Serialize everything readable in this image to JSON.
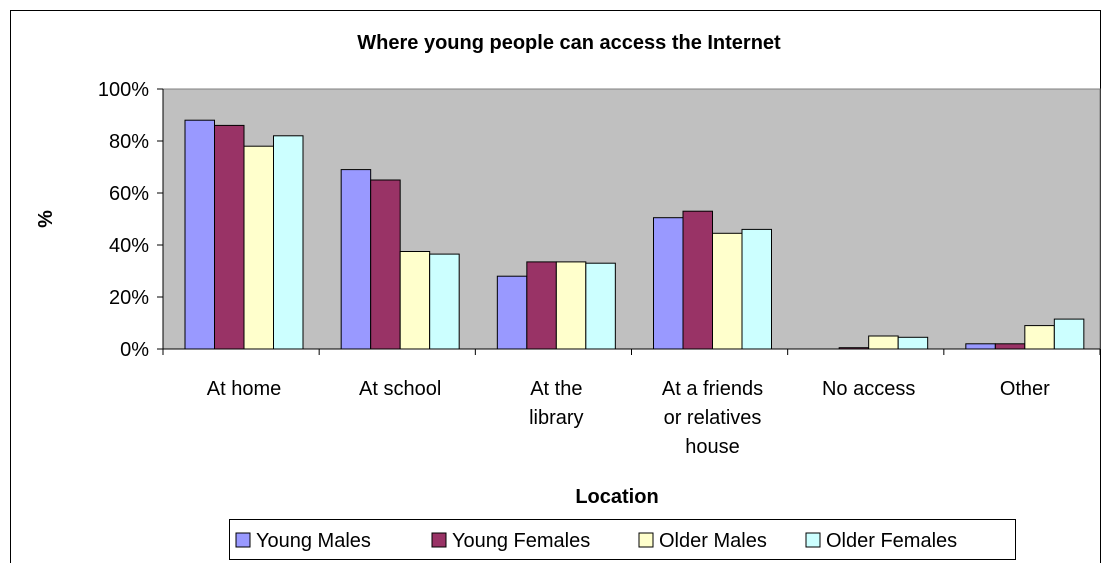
{
  "chart_data": {
    "type": "bar",
    "title": "Where young people can access the Internet",
    "xlabel": "Location",
    "ylabel": "%",
    "ylim": [
      0,
      100
    ],
    "yticks": [
      "0%",
      "20%",
      "40%",
      "60%",
      "80%",
      "100%"
    ],
    "ytick_values": [
      0,
      20,
      40,
      60,
      80,
      100
    ],
    "grid": false,
    "legend_position": "bottom",
    "categories": [
      [
        "At home"
      ],
      [
        "At school"
      ],
      [
        "At the",
        "library"
      ],
      [
        "At a friends",
        "or relatives",
        "house"
      ],
      [
        "No access"
      ],
      [
        "Other"
      ]
    ],
    "series": [
      {
        "name": "Young Males",
        "color": "#9999FF",
        "values": [
          88,
          69,
          28,
          50.5,
          0,
          2
        ]
      },
      {
        "name": "Young Females",
        "color": "#993366",
        "values": [
          86,
          65,
          33.5,
          53,
          0.5,
          2
        ]
      },
      {
        "name": "Older Males",
        "color": "#FFFFCC",
        "values": [
          78,
          37.5,
          33.5,
          44.5,
          5,
          9
        ]
      },
      {
        "name": "Older Females",
        "color": "#CCFFFF",
        "values": [
          82,
          36.5,
          33,
          46,
          4.5,
          11.5
        ]
      }
    ],
    "plot_background": "#C0C0C0"
  }
}
